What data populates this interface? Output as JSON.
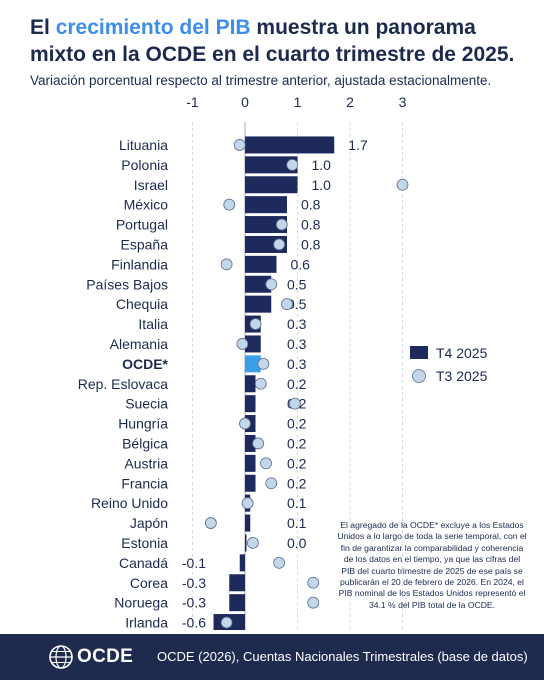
{
  "header": {
    "title_part1": "El ",
    "title_highlight": "crecimiento del PIB",
    "title_part2": " muestra un panorama mixto en la OCDE en el cuarto trimestre de 2025.",
    "subtitle": "Variación porcentual respecto al trimestre anterior, ajustada estacionalmente."
  },
  "chart_data": {
    "type": "bar",
    "orientation": "horizontal",
    "categories": [
      "Lituania",
      "Polonia",
      "Israel",
      "México",
      "Portugal",
      "España",
      "Finlandia",
      "Países Bajos",
      "Chequia",
      "Italia",
      "Alemania",
      "OCDE*",
      "Rep. Eslovaca",
      "Suecia",
      "Hungría",
      "Bélgica",
      "Austria",
      "Francia",
      "Reino Unido",
      "Japón",
      "Estonia",
      "Canadá",
      "Corea",
      "Noruega",
      "Irlanda"
    ],
    "series": [
      {
        "name": "T4 2025",
        "type": "bar",
        "values": [
          1.7,
          1.0,
          1.0,
          0.8,
          0.8,
          0.8,
          0.6,
          0.5,
          0.5,
          0.3,
          0.3,
          0.3,
          0.2,
          0.2,
          0.2,
          0.2,
          0.2,
          0.2,
          0.1,
          0.1,
          0.0,
          -0.1,
          -0.3,
          -0.3,
          -0.6
        ]
      },
      {
        "name": "T3 2025",
        "type": "dot",
        "values": [
          -0.1,
          0.9,
          3.0,
          -0.3,
          0.7,
          0.65,
          -0.35,
          0.5,
          0.8,
          0.2,
          -0.05,
          0.35,
          0.3,
          0.95,
          0.0,
          0.25,
          0.4,
          0.5,
          0.05,
          -0.65,
          0.15,
          0.65,
          1.3,
          1.3,
          -0.35
        ]
      }
    ],
    "value_labels": [
      "1.7",
      "1.0",
      "1.0",
      "0.8",
      "0.8",
      "0.8",
      "0.6",
      "0.5",
      "0.5",
      "0.3",
      "0.3",
      "0.3",
      "0.2",
      "0.2",
      "0.2",
      "0.2",
      "0.2",
      "0.2",
      "0.1",
      "0.1",
      "0.0",
      "-0.1",
      "-0.3",
      "-0.3",
      "-0.6"
    ],
    "highlight_category": "OCDE*",
    "xticks": [
      "-1",
      "0",
      "1",
      "2",
      "3"
    ],
    "xlim": [
      -1,
      3
    ],
    "grid": true,
    "legend_position": "right",
    "colors": {
      "bar": "#1e2a5c",
      "highlight": "#3a9ee8",
      "dot_fill": "#c3d7ea",
      "dot_stroke": "#5a6d8e"
    }
  },
  "note": "El agregado de la OCDE* excluye a los Estados Unidos a lo largo de toda la serie temporal, con el fin de garantizar la comparabilidad y coherencia de los datos en el tiempo, ya que las cifras del PIB del cuarto trimestre de 2025 de ese país se publicarán el 20 de febrero de 2026. En 2024, el PIB nominal de los Estados Unidos representó el 34.1 % del PIB total de la OCDE.",
  "footer": {
    "logo_text": "OCDE",
    "logo_icon": "globe-icon",
    "source": "OCDE (2026), Cuentas Nacionales Trimestrales (base de datos)"
  }
}
